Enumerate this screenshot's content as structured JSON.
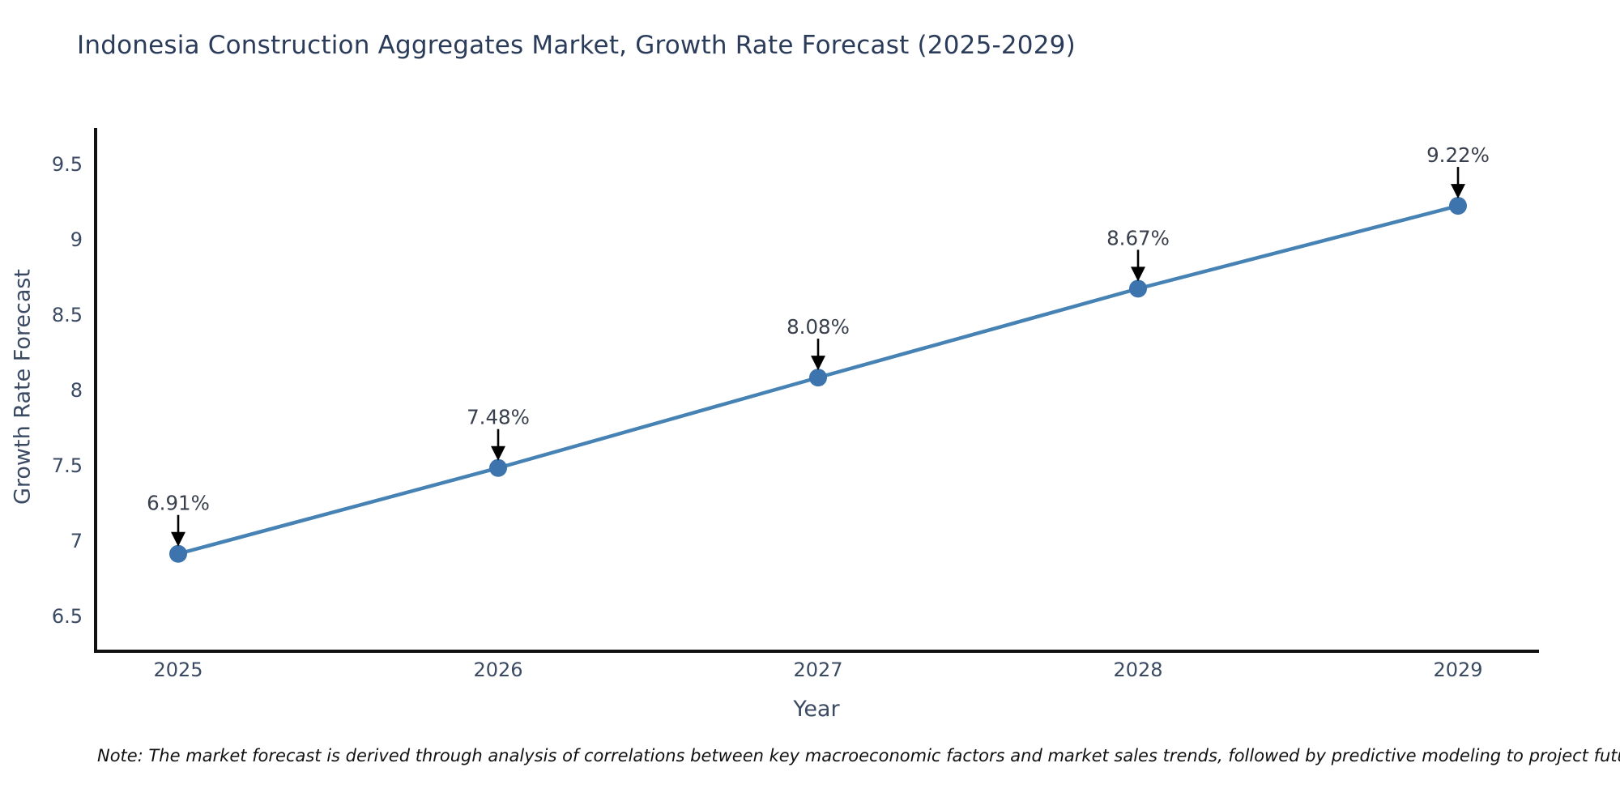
{
  "chart_data": {
    "type": "line",
    "title": "Indonesia Construction Aggregates Market, Growth Rate Forecast (2025-2029)",
    "xlabel": "Year",
    "ylabel": "Growth Rate Forecast",
    "categories": [
      2025,
      2026,
      2027,
      2028,
      2029
    ],
    "series": [
      {
        "name": "Growth Rate Forecast",
        "values": [
          6.91,
          7.48,
          8.08,
          8.67,
          9.22
        ],
        "point_labels": [
          "6.91%",
          "7.48%",
          "8.08%",
          "8.67%",
          "9.22%"
        ]
      }
    ],
    "yticks": [
      6.5,
      7,
      7.5,
      8,
      8.5,
      9,
      9.5
    ],
    "ylim": [
      6.27,
      9.75
    ],
    "grid": false,
    "legend": false,
    "annotation_style": "black-down-arrow-above-each-point",
    "marker": "circle",
    "colors": {
      "line": "#4682b4",
      "marker": "#3d74ad",
      "axis_line": "#111111",
      "title_text": "#2b3c5a",
      "tick_text": "#3b4a63",
      "data_label_text": "#39404d",
      "annotation_arrow": "#000000",
      "note_text": "#111111",
      "background": "#ffffff"
    },
    "note": "Note: The market forecast is derived through analysis of correlations between key macroeconomic factors and market sales trends, followed by predictive modeling to project future sales performance."
  }
}
